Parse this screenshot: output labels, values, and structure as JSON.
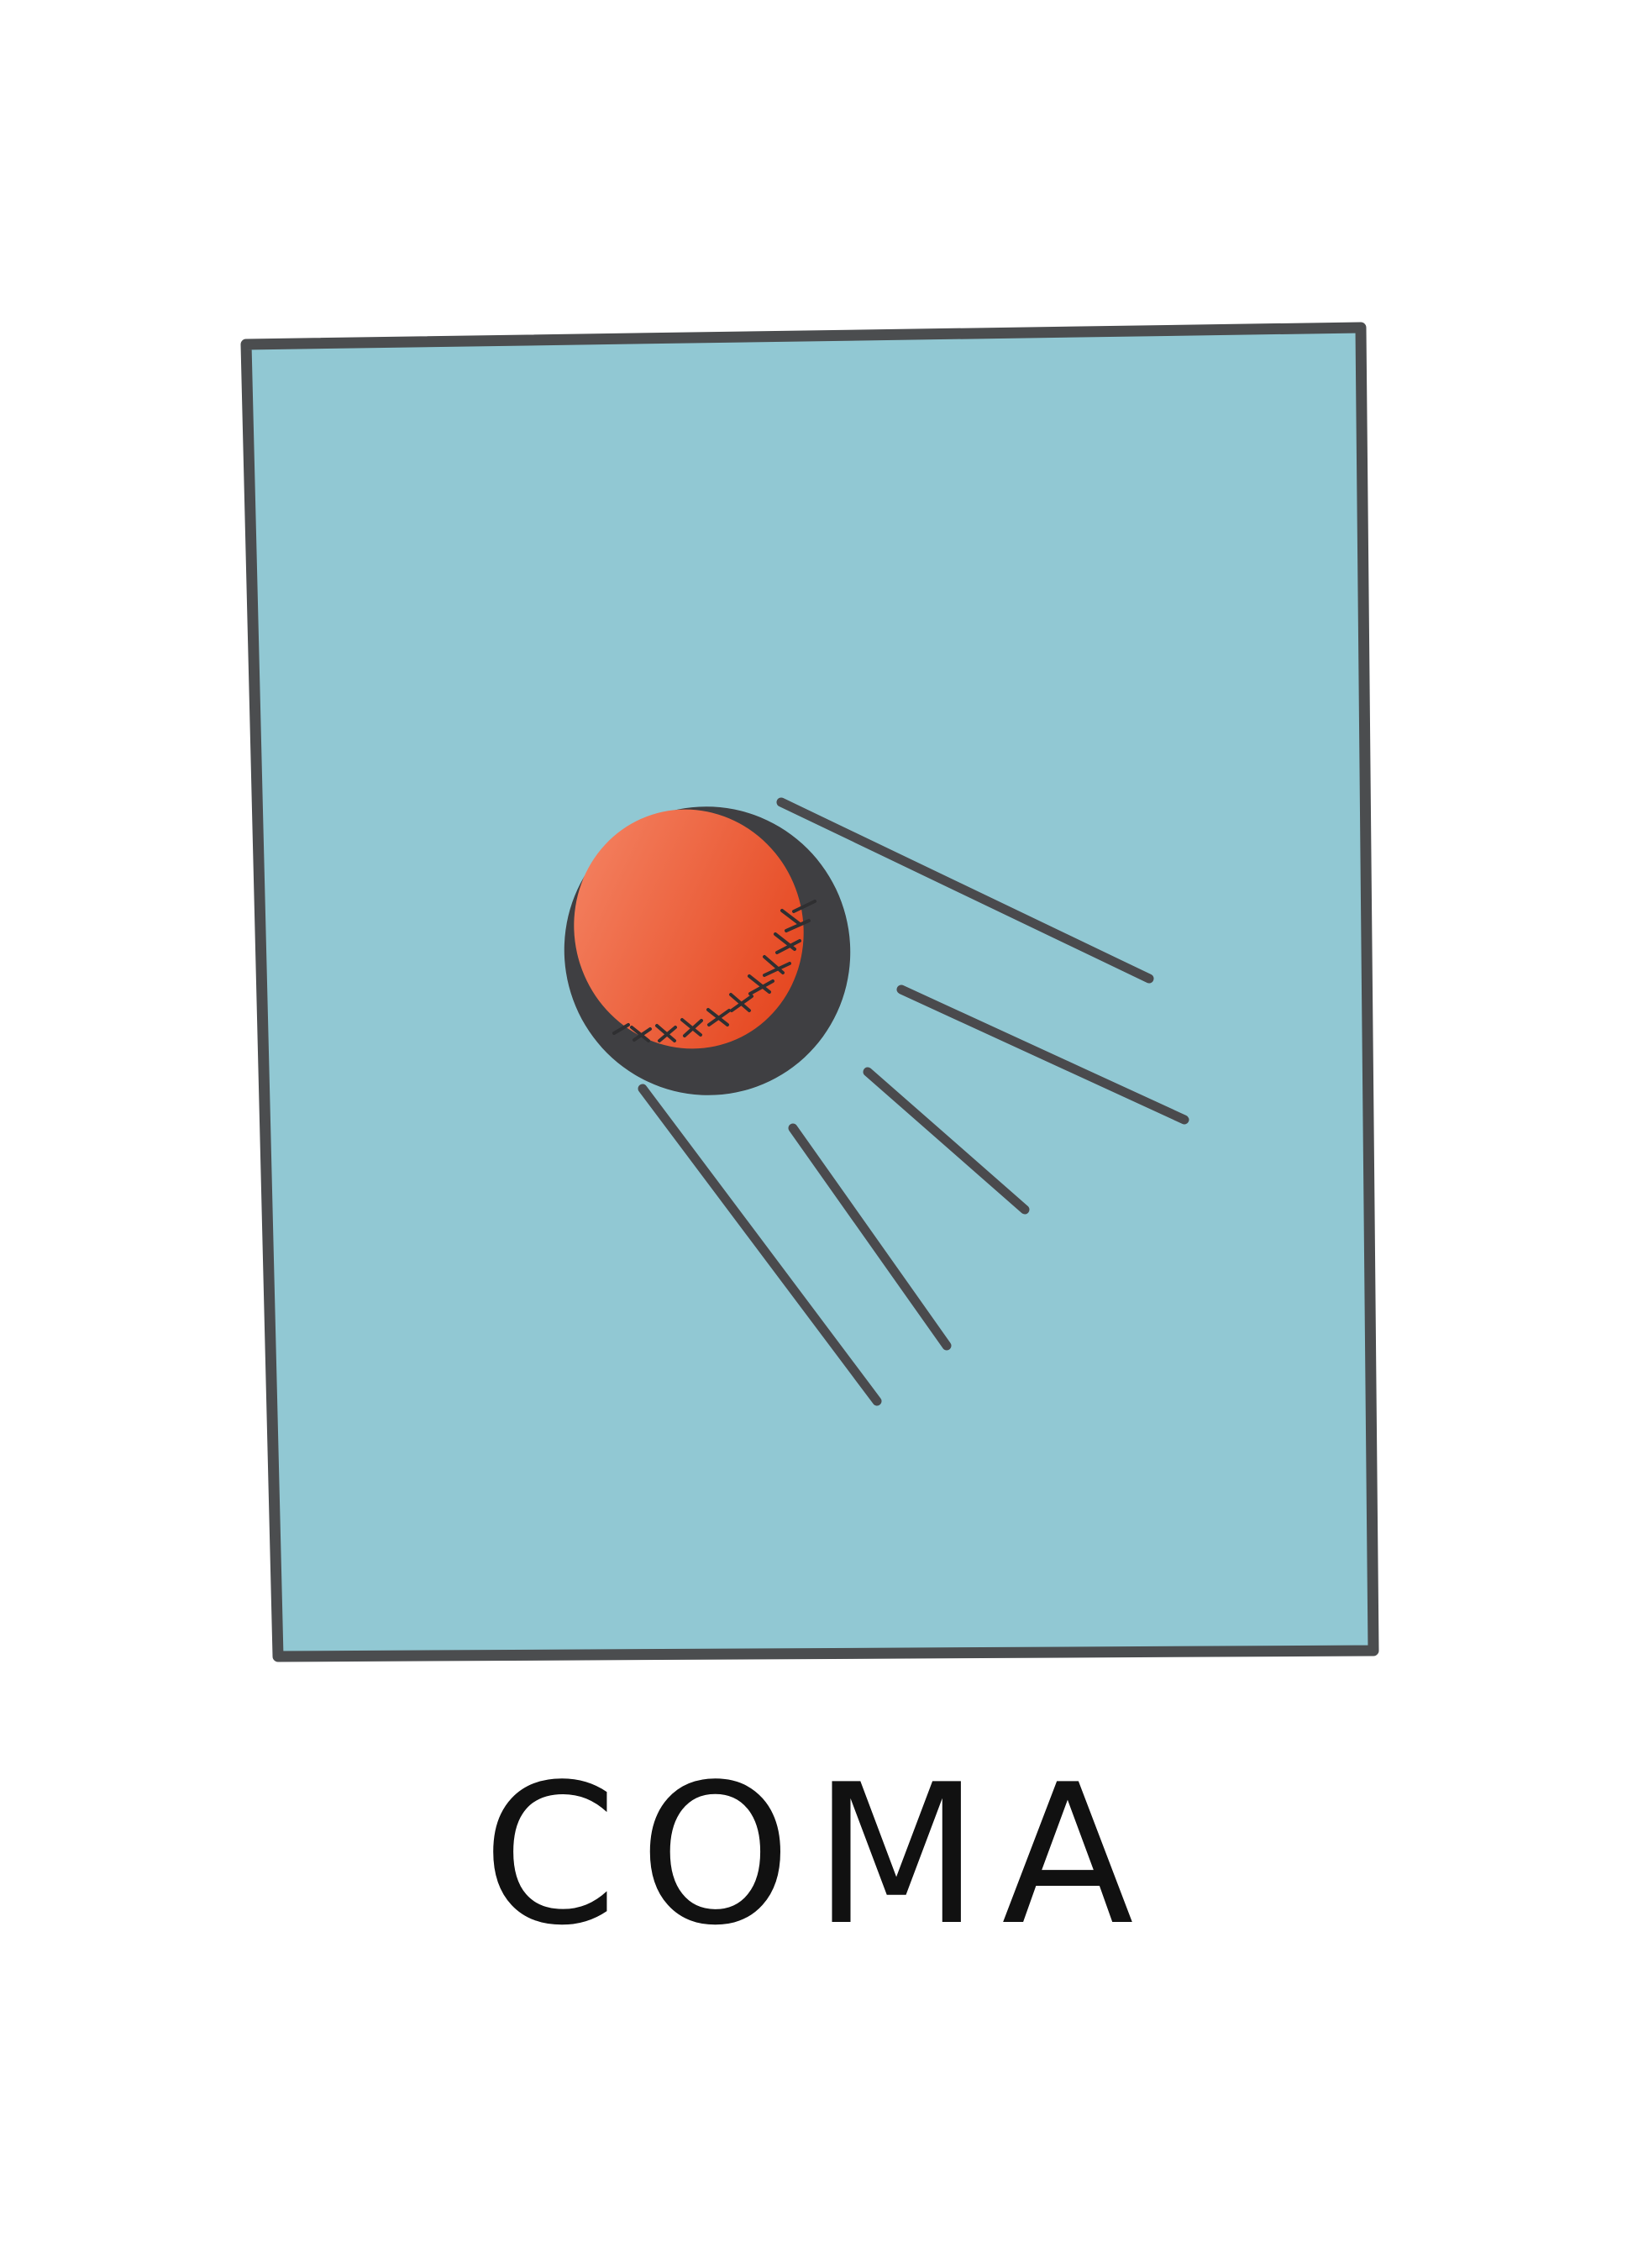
{
  "colors": {
    "background": "#ffffff",
    "panel_fill": "#91c8d3",
    "panel_border": "#4b4d4f",
    "ball_light": "#f58767",
    "ball_dark": "#e33e16",
    "shadow": "#3f3f42",
    "antenna": "#4a4a4d",
    "caption_text": "#111111"
  },
  "illustration": {
    "subject_icon": "sputnik-satellite-icon"
  },
  "caption": {
    "text": "COMA"
  }
}
